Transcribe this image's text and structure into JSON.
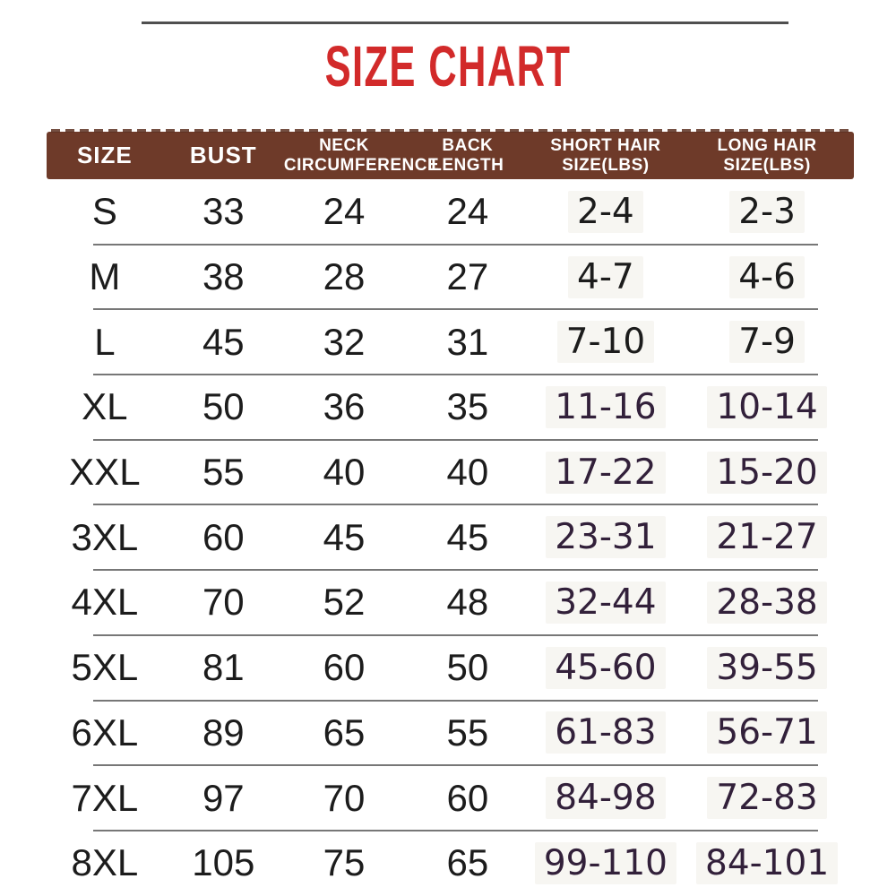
{
  "title": "SIZE CHART",
  "colors": {
    "title_red": "#d22a2a",
    "header_brown": "#6e3a29",
    "header_text": "#ffffff",
    "text_black": "#1c1c1c",
    "hair_purple": "#32203a",
    "hair_box_bg": "#f7f6f2",
    "divider_gray": "#777777",
    "top_line_gray": "#4f4f4f"
  },
  "chart_data": {
    "type": "table",
    "title": "SIZE CHART",
    "columns": [
      "SIZE",
      "BUST",
      "NECK CIRCUMFERENCE",
      "BACK LENGTH",
      "SHORT HAIR SIZE(LBS)",
      "LONG HAIR SIZE(LBS)"
    ],
    "rows": [
      [
        "S",
        "33",
        "24",
        "24",
        "2-4",
        "2-3"
      ],
      [
        "M",
        "38",
        "28",
        "27",
        "4-7",
        "4-6"
      ],
      [
        "L",
        "45",
        "32",
        "31",
        "7-10",
        "7-9"
      ],
      [
        "XL",
        "50",
        "36",
        "35",
        "11-16",
        "10-14"
      ],
      [
        "XXL",
        "55",
        "40",
        "40",
        "17-22",
        "15-20"
      ],
      [
        "3XL",
        "60",
        "45",
        "45",
        "23-31",
        "21-27"
      ],
      [
        "4XL",
        "70",
        "52",
        "48",
        "32-44",
        "28-38"
      ],
      [
        "5XL",
        "81",
        "60",
        "50",
        "45-60",
        "39-55"
      ],
      [
        "6XL",
        "89",
        "65",
        "55",
        "61-83",
        "56-71"
      ],
      [
        "7XL",
        "97",
        "70",
        "60",
        "84-98",
        "72-83"
      ],
      [
        "8XL",
        "105",
        "75",
        "65",
        "99-110",
        "84-101"
      ]
    ]
  },
  "table": {
    "headers": [
      {
        "line1": "SIZE",
        "line2": ""
      },
      {
        "line1": "BUST",
        "line2": ""
      },
      {
        "line1": "NECK",
        "line2": "CIRCUMFERENCE"
      },
      {
        "line1": "BACK",
        "line2": "LENGTH"
      },
      {
        "line1": "SHORT HAIR",
        "line2": "SIZE(LBS)"
      },
      {
        "line1": "LONG HAIR",
        "line2": "SIZE(LBS)"
      }
    ],
    "rows": [
      {
        "size": "S",
        "bust": "33",
        "neck": "24",
        "back": "24",
        "short_hair": "2-4",
        "long_hair": "2-3"
      },
      {
        "size": "M",
        "bust": "38",
        "neck": "28",
        "back": "27",
        "short_hair": "4-7",
        "long_hair": "4-6"
      },
      {
        "size": "L",
        "bust": "45",
        "neck": "32",
        "back": "31",
        "short_hair": "7-10",
        "long_hair": "7-9"
      },
      {
        "size": "XL",
        "bust": "50",
        "neck": "36",
        "back": "35",
        "short_hair": "11-16",
        "long_hair": "10-14"
      },
      {
        "size": "XXL",
        "bust": "55",
        "neck": "40",
        "back": "40",
        "short_hair": "17-22",
        "long_hair": "15-20"
      },
      {
        "size": "3XL",
        "bust": "60",
        "neck": "45",
        "back": "45",
        "short_hair": "23-31",
        "long_hair": "21-27"
      },
      {
        "size": "4XL",
        "bust": "70",
        "neck": "52",
        "back": "48",
        "short_hair": "32-44",
        "long_hair": "28-38"
      },
      {
        "size": "5XL",
        "bust": "81",
        "neck": "60",
        "back": "50",
        "short_hair": "45-60",
        "long_hair": "39-55"
      },
      {
        "size": "6XL",
        "bust": "89",
        "neck": "65",
        "back": "55",
        "short_hair": "61-83",
        "long_hair": "56-71"
      },
      {
        "size": "7XL",
        "bust": "97",
        "neck": "70",
        "back": "60",
        "short_hair": "84-98",
        "long_hair": "72-83"
      },
      {
        "size": "8XL",
        "bust": "105",
        "neck": "75",
        "back": "65",
        "short_hair": "99-110",
        "long_hair": "84-101"
      }
    ]
  }
}
